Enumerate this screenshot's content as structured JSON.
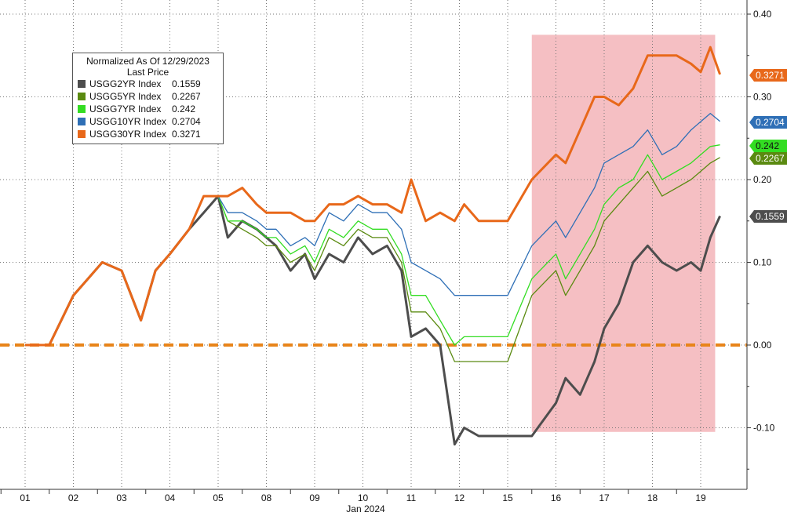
{
  "chart_data": {
    "type": "line",
    "legend": {
      "title": "Normalized As Of 12/29/2023",
      "subtitle": "Last Price",
      "placement": "top-left"
    },
    "xlabel": "Jan 2024",
    "x_ticks": [
      "01",
      "02",
      "03",
      "04",
      "05",
      "08",
      "09",
      "10",
      "11",
      "12",
      "15",
      "16",
      "17",
      "18",
      "19"
    ],
    "y_ticks": [
      "-0.10",
      "0.00",
      "0.10",
      "0.20",
      "0.30",
      "0.40"
    ],
    "ylim": [
      -0.15,
      0.4
    ],
    "grid": true,
    "series": [
      {
        "name": "USGG2YR Index",
        "last": "0.1559",
        "color": "#4d4d4d",
        "x": [
          0.0,
          0.5,
          1.0,
          1.3,
          1.6,
          2.0,
          2.4,
          2.7,
          3.0,
          3.4,
          3.7,
          4.0,
          4.2,
          4.5,
          4.8,
          5.0,
          5.2,
          5.5,
          5.8,
          6.0,
          6.3,
          6.6,
          6.9,
          7.2,
          7.5,
          7.8,
          8.0,
          8.3,
          8.6,
          8.9,
          9.1,
          9.4,
          9.7,
          10.0,
          10.5,
          11.0,
          11.2,
          11.5,
          11.8,
          12.0,
          12.3,
          12.6,
          12.9,
          13.2,
          13.5,
          13.8,
          14.0,
          14.2,
          14.4
        ],
        "y": [
          0.0,
          0.0,
          0.06,
          0.08,
          0.1,
          0.09,
          0.03,
          0.09,
          0.11,
          0.14,
          0.16,
          0.18,
          0.13,
          0.15,
          0.14,
          0.13,
          0.12,
          0.09,
          0.11,
          0.08,
          0.11,
          0.1,
          0.13,
          0.11,
          0.12,
          0.09,
          0.01,
          0.02,
          0.0,
          -0.12,
          -0.1,
          -0.11,
          -0.11,
          -0.11,
          -0.11,
          -0.07,
          -0.04,
          -0.06,
          -0.02,
          0.02,
          0.05,
          0.1,
          0.12,
          0.1,
          0.09,
          0.1,
          0.09,
          0.13,
          0.1559
        ]
      },
      {
        "name": "USGG5YR Index",
        "last": "0.2267",
        "color": "#5a8a10",
        "x": [
          0.0,
          0.5,
          1.0,
          1.3,
          1.6,
          2.0,
          2.4,
          2.7,
          3.0,
          3.4,
          3.7,
          4.0,
          4.2,
          4.5,
          4.8,
          5.0,
          5.2,
          5.5,
          5.8,
          6.0,
          6.3,
          6.6,
          6.9,
          7.2,
          7.5,
          7.8,
          8.0,
          8.3,
          8.6,
          8.9,
          9.1,
          9.4,
          9.7,
          10.0,
          10.5,
          11.0,
          11.2,
          11.5,
          11.8,
          12.0,
          12.3,
          12.6,
          12.9,
          13.2,
          13.5,
          13.8,
          14.0,
          14.2,
          14.4
        ],
        "y": [
          0.0,
          0.0,
          0.06,
          0.08,
          0.1,
          0.09,
          0.03,
          0.09,
          0.11,
          0.14,
          0.18,
          0.18,
          0.15,
          0.14,
          0.13,
          0.12,
          0.12,
          0.1,
          0.11,
          0.09,
          0.13,
          0.12,
          0.14,
          0.13,
          0.13,
          0.1,
          0.04,
          0.04,
          0.02,
          -0.02,
          -0.02,
          -0.02,
          -0.02,
          -0.02,
          0.06,
          0.09,
          0.06,
          0.09,
          0.12,
          0.15,
          0.17,
          0.19,
          0.21,
          0.18,
          0.19,
          0.2,
          0.21,
          0.22,
          0.2267
        ]
      },
      {
        "name": "USGG7YR Index",
        "last": "0.242",
        "color": "#33dd22",
        "x": [
          0.0,
          0.5,
          1.0,
          1.3,
          1.6,
          2.0,
          2.4,
          2.7,
          3.0,
          3.4,
          3.7,
          4.0,
          4.2,
          4.5,
          4.8,
          5.0,
          5.2,
          5.5,
          5.8,
          6.0,
          6.3,
          6.6,
          6.9,
          7.2,
          7.5,
          7.8,
          8.0,
          8.3,
          8.6,
          8.9,
          9.1,
          9.4,
          9.7,
          10.0,
          10.5,
          11.0,
          11.2,
          11.5,
          11.8,
          12.0,
          12.3,
          12.6,
          12.9,
          13.2,
          13.5,
          13.8,
          14.0,
          14.2,
          14.4
        ],
        "y": [
          0.0,
          0.0,
          0.06,
          0.08,
          0.1,
          0.09,
          0.03,
          0.09,
          0.11,
          0.14,
          0.18,
          0.18,
          0.15,
          0.15,
          0.14,
          0.13,
          0.13,
          0.11,
          0.12,
          0.1,
          0.14,
          0.13,
          0.15,
          0.14,
          0.14,
          0.11,
          0.06,
          0.06,
          0.03,
          0.0,
          0.01,
          0.01,
          0.01,
          0.01,
          0.08,
          0.11,
          0.08,
          0.11,
          0.14,
          0.17,
          0.19,
          0.2,
          0.23,
          0.2,
          0.21,
          0.22,
          0.23,
          0.24,
          0.242
        ]
      },
      {
        "name": "USGG10YR Index",
        "last": "0.2704",
        "color": "#2e6fb6",
        "x": [
          0.0,
          0.5,
          1.0,
          1.3,
          1.6,
          2.0,
          2.4,
          2.7,
          3.0,
          3.4,
          3.7,
          4.0,
          4.2,
          4.5,
          4.8,
          5.0,
          5.2,
          5.5,
          5.8,
          6.0,
          6.3,
          6.6,
          6.9,
          7.2,
          7.5,
          7.8,
          8.0,
          8.3,
          8.6,
          8.9,
          9.1,
          9.4,
          9.7,
          10.0,
          10.5,
          11.0,
          11.2,
          11.5,
          11.8,
          12.0,
          12.3,
          12.6,
          12.9,
          13.2,
          13.5,
          13.8,
          14.0,
          14.2,
          14.4
        ],
        "y": [
          0.0,
          0.0,
          0.06,
          0.08,
          0.1,
          0.09,
          0.03,
          0.09,
          0.11,
          0.14,
          0.18,
          0.18,
          0.16,
          0.16,
          0.15,
          0.14,
          0.14,
          0.12,
          0.13,
          0.12,
          0.16,
          0.15,
          0.17,
          0.16,
          0.16,
          0.14,
          0.1,
          0.09,
          0.08,
          0.06,
          0.06,
          0.06,
          0.06,
          0.06,
          0.12,
          0.15,
          0.13,
          0.16,
          0.19,
          0.22,
          0.23,
          0.24,
          0.26,
          0.23,
          0.24,
          0.26,
          0.27,
          0.28,
          0.2704
        ]
      },
      {
        "name": "USGG30YR Index",
        "last": "0.3271",
        "color": "#e8681a",
        "x": [
          0.0,
          0.5,
          1.0,
          1.3,
          1.6,
          2.0,
          2.4,
          2.7,
          3.0,
          3.4,
          3.7,
          4.0,
          4.2,
          4.5,
          4.8,
          5.0,
          5.2,
          5.5,
          5.8,
          6.0,
          6.3,
          6.6,
          6.9,
          7.2,
          7.5,
          7.8,
          8.0,
          8.3,
          8.6,
          8.9,
          9.1,
          9.4,
          9.7,
          10.0,
          10.5,
          11.0,
          11.2,
          11.5,
          11.8,
          12.0,
          12.3,
          12.6,
          12.9,
          13.2,
          13.5,
          13.8,
          14.0,
          14.2,
          14.4
        ],
        "y": [
          0.0,
          0.0,
          0.06,
          0.08,
          0.1,
          0.09,
          0.03,
          0.09,
          0.11,
          0.14,
          0.18,
          0.18,
          0.18,
          0.19,
          0.17,
          0.16,
          0.16,
          0.16,
          0.15,
          0.15,
          0.17,
          0.17,
          0.18,
          0.17,
          0.17,
          0.16,
          0.2,
          0.15,
          0.16,
          0.15,
          0.17,
          0.15,
          0.15,
          0.15,
          0.2,
          0.23,
          0.22,
          0.26,
          0.3,
          0.3,
          0.29,
          0.31,
          0.35,
          0.35,
          0.35,
          0.34,
          0.33,
          0.36,
          0.3271
        ]
      }
    ],
    "shaded_region": {
      "x_start": 10.5,
      "x_end": 14.3,
      "y_start": -0.105,
      "y_end": 0.375,
      "color": "#f4b8bc"
    },
    "reference_line": {
      "y": 0.0,
      "color": "#e8841a",
      "style": "dashed"
    }
  }
}
